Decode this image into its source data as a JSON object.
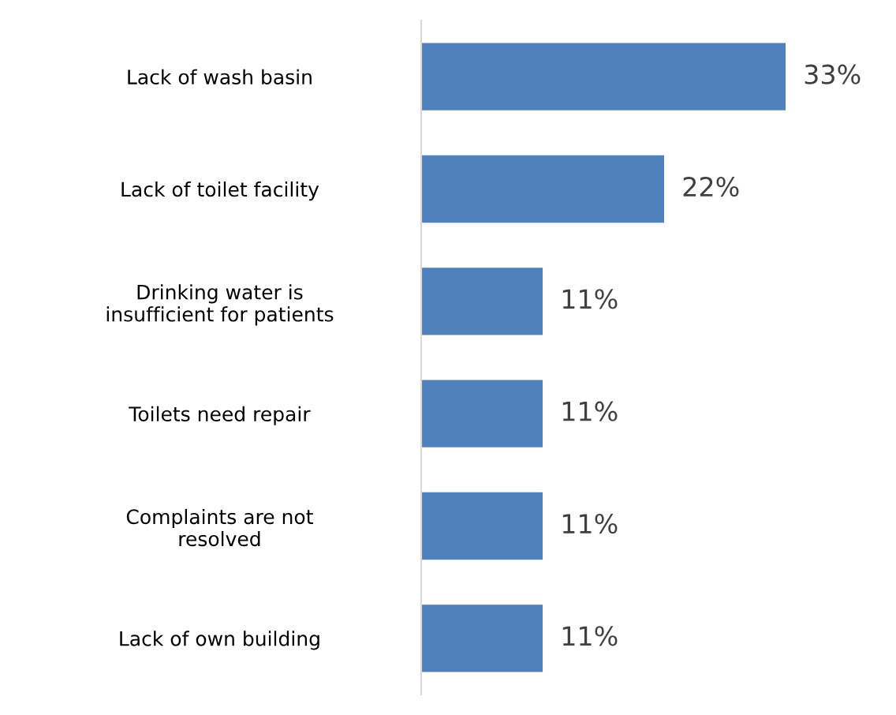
{
  "chart_data": {
    "type": "bar",
    "orientation": "horizontal",
    "categories": [
      "Lack of wash basin",
      "Lack of toilet facility",
      "Drinking water is\ninsufficient for patients",
      "Toilets need repair",
      "Complaints are not\nresolved",
      "Lack of own building"
    ],
    "values": [
      33,
      22,
      11,
      11,
      11,
      11
    ],
    "value_labels": [
      "33%",
      "22%",
      "11%",
      "11%",
      "11%",
      "11%"
    ],
    "color": "#4f81bd",
    "grid": false,
    "legend": false
  }
}
